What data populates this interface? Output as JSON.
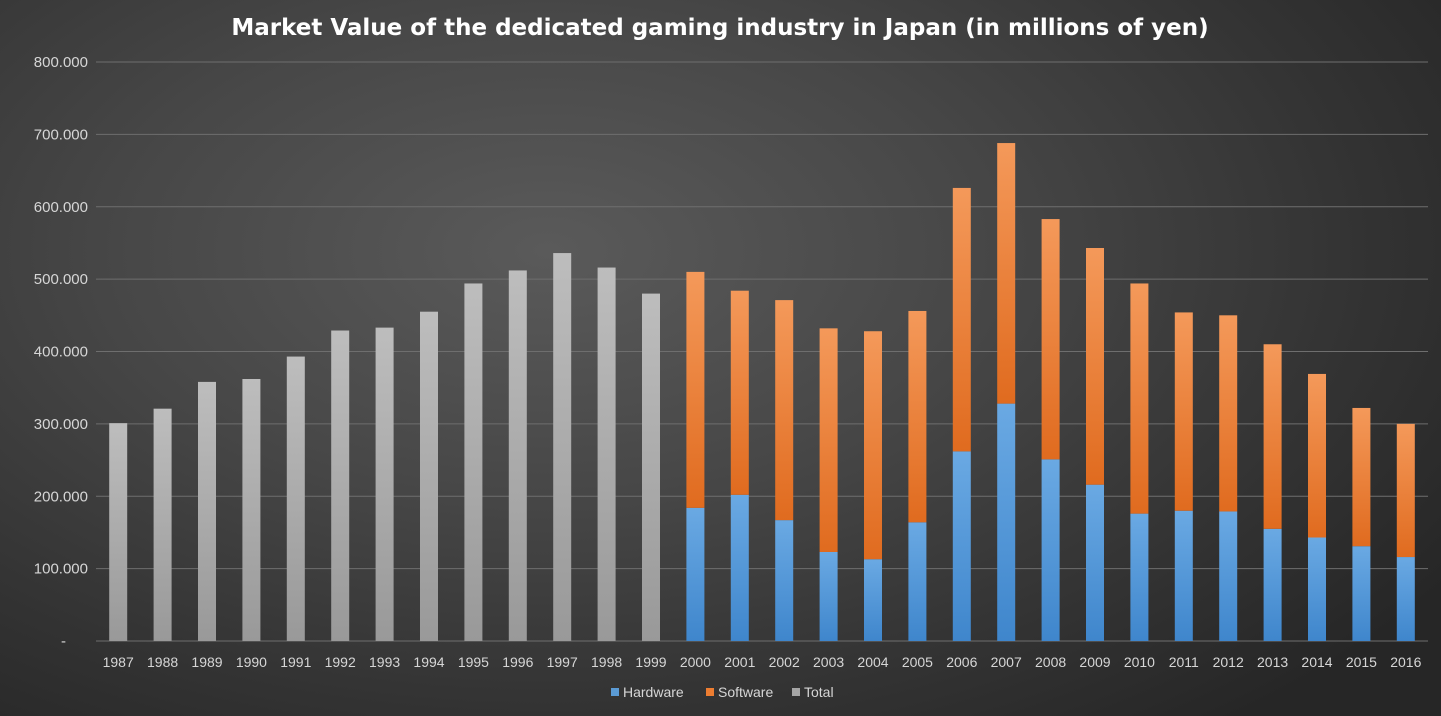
{
  "chart_data": {
    "type": "bar",
    "stacked": true,
    "title": "Market Value of the dedicated gaming industry in Japan (in millions of yen)",
    "xlabel": "",
    "ylabel": "",
    "ylim": [
      0,
      800000
    ],
    "y_ticks": [
      {
        "value": 0,
        "label": "-"
      },
      {
        "value": 100000,
        "label": "100.000"
      },
      {
        "value": 200000,
        "label": "200.000"
      },
      {
        "value": 300000,
        "label": "300.000"
      },
      {
        "value": 400000,
        "label": "400.000"
      },
      {
        "value": 500000,
        "label": "500.000"
      },
      {
        "value": 600000,
        "label": "600.000"
      },
      {
        "value": 700000,
        "label": "700.000"
      },
      {
        "value": 800000,
        "label": "800.000"
      }
    ],
    "grid": true,
    "legend_position": "bottom",
    "categories": [
      "1987",
      "1988",
      "1989",
      "1990",
      "1991",
      "1992",
      "1993",
      "1994",
      "1995",
      "1996",
      "1997",
      "1998",
      "1999",
      "2000",
      "2001",
      "2002",
      "2003",
      "2004",
      "2005",
      "2006",
      "2007",
      "2008",
      "2009",
      "2010",
      "2011",
      "2012",
      "2013",
      "2014",
      "2015",
      "2016"
    ],
    "series": [
      {
        "name": "Hardware",
        "color": "#5b9bd5",
        "values": [
          null,
          null,
          null,
          null,
          null,
          null,
          null,
          null,
          null,
          null,
          null,
          null,
          null,
          184000,
          202000,
          167000,
          123000,
          113000,
          164000,
          262000,
          328000,
          251000,
          216000,
          176000,
          180000,
          179000,
          155000,
          143000,
          131000,
          116000
        ]
      },
      {
        "name": "Software",
        "color": "#ed7d31",
        "values": [
          null,
          null,
          null,
          null,
          null,
          null,
          null,
          null,
          null,
          null,
          null,
          null,
          null,
          326000,
          282000,
          304000,
          309000,
          315000,
          292000,
          364000,
          360000,
          332000,
          327000,
          318000,
          274000,
          271000,
          255000,
          226000,
          191000,
          184000
        ]
      },
      {
        "name": "Total",
        "color": "#a5a5a5",
        "values": [
          301000,
          321000,
          358000,
          362000,
          393000,
          429000,
          433000,
          455000,
          494000,
          512000,
          536000,
          516000,
          480000,
          null,
          null,
          null,
          null,
          null,
          null,
          null,
          null,
          null,
          null,
          null,
          null,
          null,
          null,
          null,
          null,
          null
        ]
      }
    ]
  }
}
